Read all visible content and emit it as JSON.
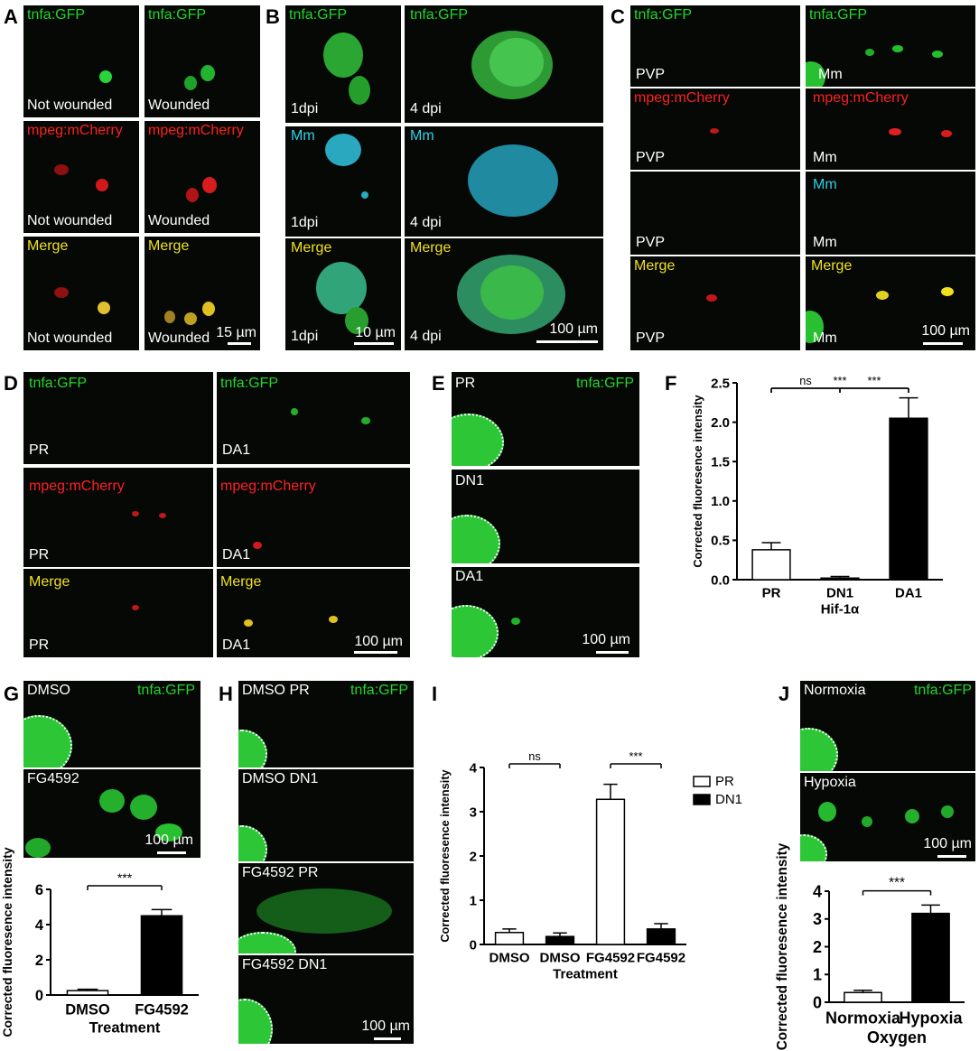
{
  "panel_letters": [
    "A",
    "B",
    "C",
    "D",
    "E",
    "F",
    "G",
    "H",
    "I",
    "J"
  ],
  "labels": {
    "tnfa": "tnfa:GFP",
    "mpeg": "mpeg:mCherry",
    "merge": "Merge",
    "mm": "Mm",
    "not_wounded": "Not wounded",
    "wounded": "Wounded",
    "dpi1": "1dpi",
    "dpi4": "4 dpi",
    "pvp": "PVP",
    "pr": "PR",
    "da1": "DA1",
    "dn1": "DN1",
    "dmso": "DMSO",
    "fg": "FG4592",
    "dmso_pr": "DMSO PR",
    "dmso_dn1": "DMSO DN1",
    "fg_pr": "FG4592 PR",
    "fg_dn1": "FG4592 DN1",
    "normoxia": "Normoxia",
    "hypoxia": "Hypoxia"
  },
  "scalebars": {
    "s15": "15 µm",
    "s10": "10 µm",
    "s100": "100 µm"
  },
  "chart_data": [
    {
      "id": "F",
      "type": "bar",
      "categories": [
        "PR",
        "DN1",
        "DA1"
      ],
      "values": [
        0.38,
        0.02,
        2.05
      ],
      "errors": [
        0.09,
        0.02,
        0.26
      ],
      "fills": [
        "#ffffff",
        "#000000",
        "#000000"
      ],
      "xlabel": "Hif-1α",
      "ylabel": "Corrected fluoresence intensity",
      "ylim": [
        0,
        2.5
      ],
      "yticks": [
        "0.0",
        "0.5",
        "1.0",
        "1.5",
        "2.0",
        "2.5"
      ],
      "significance": [
        {
          "from": 0,
          "to": 1,
          "label": "ns"
        },
        {
          "from": 1,
          "to": 2,
          "label": "***"
        },
        {
          "from": 0,
          "to": 2,
          "label": "***"
        }
      ]
    },
    {
      "id": "G",
      "type": "bar",
      "categories": [
        "DMSO",
        "FG4592"
      ],
      "values": [
        0.25,
        4.5
      ],
      "errors": [
        0.08,
        0.35
      ],
      "fills": [
        "#ffffff",
        "#000000"
      ],
      "xlabel": "Treatment",
      "ylabel": "Corrected fluoresence intensity",
      "ylim": [
        0,
        6
      ],
      "yticks": [
        "0",
        "2",
        "4",
        "6"
      ],
      "significance": [
        {
          "from": 0,
          "to": 1,
          "label": "***"
        }
      ]
    },
    {
      "id": "I",
      "type": "bar",
      "categories": [
        "DMSO",
        "DMSO",
        "FG4592",
        "FG4592"
      ],
      "values": [
        0.27,
        0.18,
        3.28,
        0.35
      ],
      "errors": [
        0.08,
        0.08,
        0.34,
        0.12
      ],
      "fills": [
        "#ffffff",
        "#000000",
        "#ffffff",
        "#000000"
      ],
      "xlabel": "Treatment",
      "ylabel": "Corrected fluoresence intensity",
      "ylim": [
        0,
        4
      ],
      "yticks": [
        "0",
        "1",
        "2",
        "3",
        "4"
      ],
      "legend": [
        {
          "name": "PR",
          "fill": "#ffffff"
        },
        {
          "name": "DN1",
          "fill": "#000000"
        }
      ],
      "significance": [
        {
          "from": 0,
          "to": 1,
          "label": "ns"
        },
        {
          "from": 2,
          "to": 3,
          "label": "***"
        }
      ]
    },
    {
      "id": "J",
      "type": "bar",
      "categories": [
        "Normoxia",
        "Hypoxia"
      ],
      "values": [
        0.35,
        3.2
      ],
      "errors": [
        0.08,
        0.3
      ],
      "fills": [
        "#ffffff",
        "#000000"
      ],
      "xlabel": "Oxygen",
      "ylabel": "Corrected fluoresence intensity",
      "ylim": [
        0,
        4
      ],
      "yticks": [
        "0",
        "1",
        "2",
        "3",
        "4"
      ],
      "significance": [
        {
          "from": 0,
          "to": 1,
          "label": "***"
        }
      ]
    }
  ]
}
